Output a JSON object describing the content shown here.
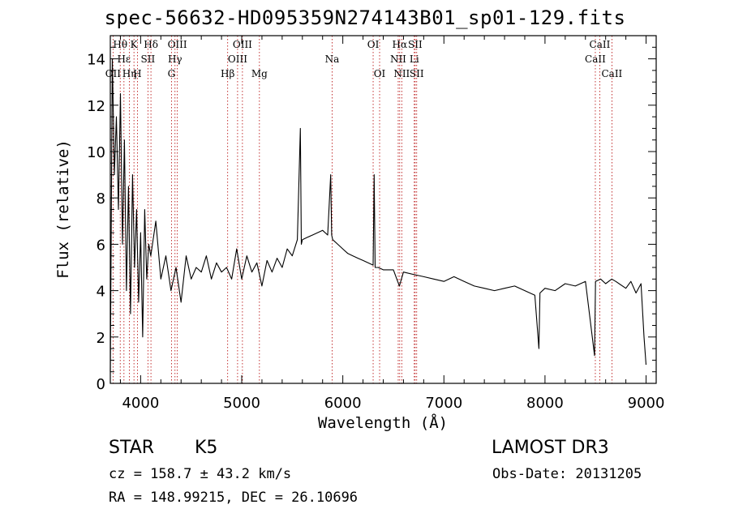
{
  "chart_data": {
    "type": "line",
    "title": "spec-56632-HD095359N274143B01_sp01-129.fits",
    "xlabel": "Wavelength (Å)",
    "ylabel": "Flux (relative)",
    "xlim": [
      3700,
      9100
    ],
    "ylim": [
      0,
      15
    ],
    "x_ticks": [
      4000,
      5000,
      6000,
      7000,
      8000,
      9000
    ],
    "y_ticks": [
      0,
      2,
      4,
      6,
      8,
      10,
      12,
      14
    ],
    "grid": false,
    "series": [
      {
        "name": "flux",
        "x": [
          3700,
          3720,
          3740,
          3760,
          3780,
          3800,
          3820,
          3840,
          3860,
          3880,
          3900,
          3920,
          3940,
          3960,
          3980,
          4000,
          4020,
          4040,
          4060,
          4080,
          4100,
          4150,
          4200,
          4250,
          4300,
          4350,
          4400,
          4450,
          4500,
          4550,
          4600,
          4650,
          4700,
          4750,
          4800,
          4850,
          4900,
          4950,
          5000,
          5050,
          5100,
          5150,
          5200,
          5250,
          5300,
          5350,
          5400,
          5450,
          5500,
          5550,
          5580,
          5590,
          5600,
          5650,
          5700,
          5750,
          5800,
          5850,
          5880,
          5890,
          5900,
          5950,
          6000,
          6050,
          6100,
          6150,
          6200,
          6250,
          6300,
          6310,
          6320,
          6350,
          6400,
          6500,
          6560,
          6600,
          6700,
          6800,
          6900,
          7000,
          7100,
          7200,
          7300,
          7400,
          7500,
          7600,
          7700,
          7800,
          7900,
          7940,
          7950,
          8000,
          8100,
          8200,
          8300,
          8400,
          8490,
          8500,
          8550,
          8600,
          8660,
          8700,
          8800,
          8850,
          8900,
          8950,
          8980,
          9000
        ],
        "y": [
          0.5,
          14.0,
          9.0,
          11.5,
          7.5,
          12.5,
          6.0,
          10.5,
          4.0,
          8.5,
          3.0,
          9.0,
          5.0,
          7.5,
          3.5,
          6.5,
          2.0,
          7.5,
          4.5,
          6.0,
          5.5,
          7.0,
          4.5,
          5.5,
          4.0,
          5.0,
          3.5,
          5.5,
          4.5,
          5.0,
          4.8,
          5.5,
          4.5,
          5.2,
          4.8,
          5.0,
          4.5,
          5.8,
          4.5,
          5.5,
          4.8,
          5.2,
          4.2,
          5.3,
          4.8,
          5.4,
          5.0,
          5.8,
          5.5,
          6.2,
          11.0,
          6.0,
          6.2,
          6.3,
          6.4,
          6.5,
          6.6,
          6.4,
          9.0,
          6.4,
          6.2,
          6.0,
          5.8,
          5.6,
          5.5,
          5.4,
          5.3,
          5.2,
          5.1,
          9.0,
          5.0,
          5.0,
          4.9,
          4.9,
          4.2,
          4.8,
          4.7,
          4.6,
          4.5,
          4.4,
          4.6,
          4.4,
          4.2,
          4.1,
          4.0,
          4.1,
          4.2,
          4.0,
          3.8,
          1.5,
          3.9,
          4.1,
          4.0,
          4.3,
          4.2,
          4.4,
          1.2,
          4.4,
          4.5,
          4.3,
          4.5,
          4.4,
          4.1,
          4.4,
          3.9,
          4.3,
          2.0,
          0.8
        ]
      }
    ],
    "lines": [
      {
        "label": "Hθ",
        "x": 3798,
        "row": 0
      },
      {
        "label": "OII",
        "x": 3727,
        "row": 2
      },
      {
        "label": "Hε",
        "x": 3835,
        "row": 1
      },
      {
        "label": "Hη",
        "x": 3889,
        "row": 2
      },
      {
        "label": "K",
        "x": 3934,
        "row": 0
      },
      {
        "label": "H",
        "x": 3968,
        "row": 2
      },
      {
        "label": "SII",
        "x": 4072,
        "row": 1
      },
      {
        "label": "Hδ",
        "x": 4102,
        "row": 0
      },
      {
        "label": "G",
        "x": 4305,
        "row": 2
      },
      {
        "label": "Hγ",
        "x": 4340,
        "row": 1
      },
      {
        "label": "OIII",
        "x": 4363,
        "row": 0
      },
      {
        "label": "Hβ",
        "x": 4861,
        "row": 2
      },
      {
        "label": "OIII",
        "x": 4959,
        "row": 1
      },
      {
        "label": "OIII",
        "x": 5007,
        "row": 0
      },
      {
        "label": "Mg",
        "x": 5175,
        "row": 2
      },
      {
        "label": "Na",
        "x": 5894,
        "row": 1
      },
      {
        "label": "OI",
        "x": 6300,
        "row": 0
      },
      {
        "label": "OI",
        "x": 6364,
        "row": 2
      },
      {
        "label": "NII",
        "x": 6548,
        "row": 1
      },
      {
        "label": "Hα",
        "x": 6563,
        "row": 0
      },
      {
        "label": "NII",
        "x": 6583,
        "row": 2
      },
      {
        "label": "Li",
        "x": 6707,
        "row": 1
      },
      {
        "label": "SII",
        "x": 6716,
        "row": 0
      },
      {
        "label": "SII",
        "x": 6731,
        "row": 2
      },
      {
        "label": "CaII",
        "x": 8498,
        "row": 1
      },
      {
        "label": "CaII",
        "x": 8542,
        "row": 0
      },
      {
        "label": "CaII",
        "x": 8662,
        "row": 2
      }
    ]
  },
  "info": {
    "class": "STAR",
    "subclass": "K5",
    "survey": "LAMOST DR3",
    "cz": "cz = 158.7 ± 43.2 km/s",
    "obs_date": "Obs-Date: 20131205",
    "radec": "RA = 148.99215, DEC =  26.10696"
  },
  "colors": {
    "spectrum": "#000000",
    "line_marker": "#b30000",
    "background": "#ffffff"
  }
}
